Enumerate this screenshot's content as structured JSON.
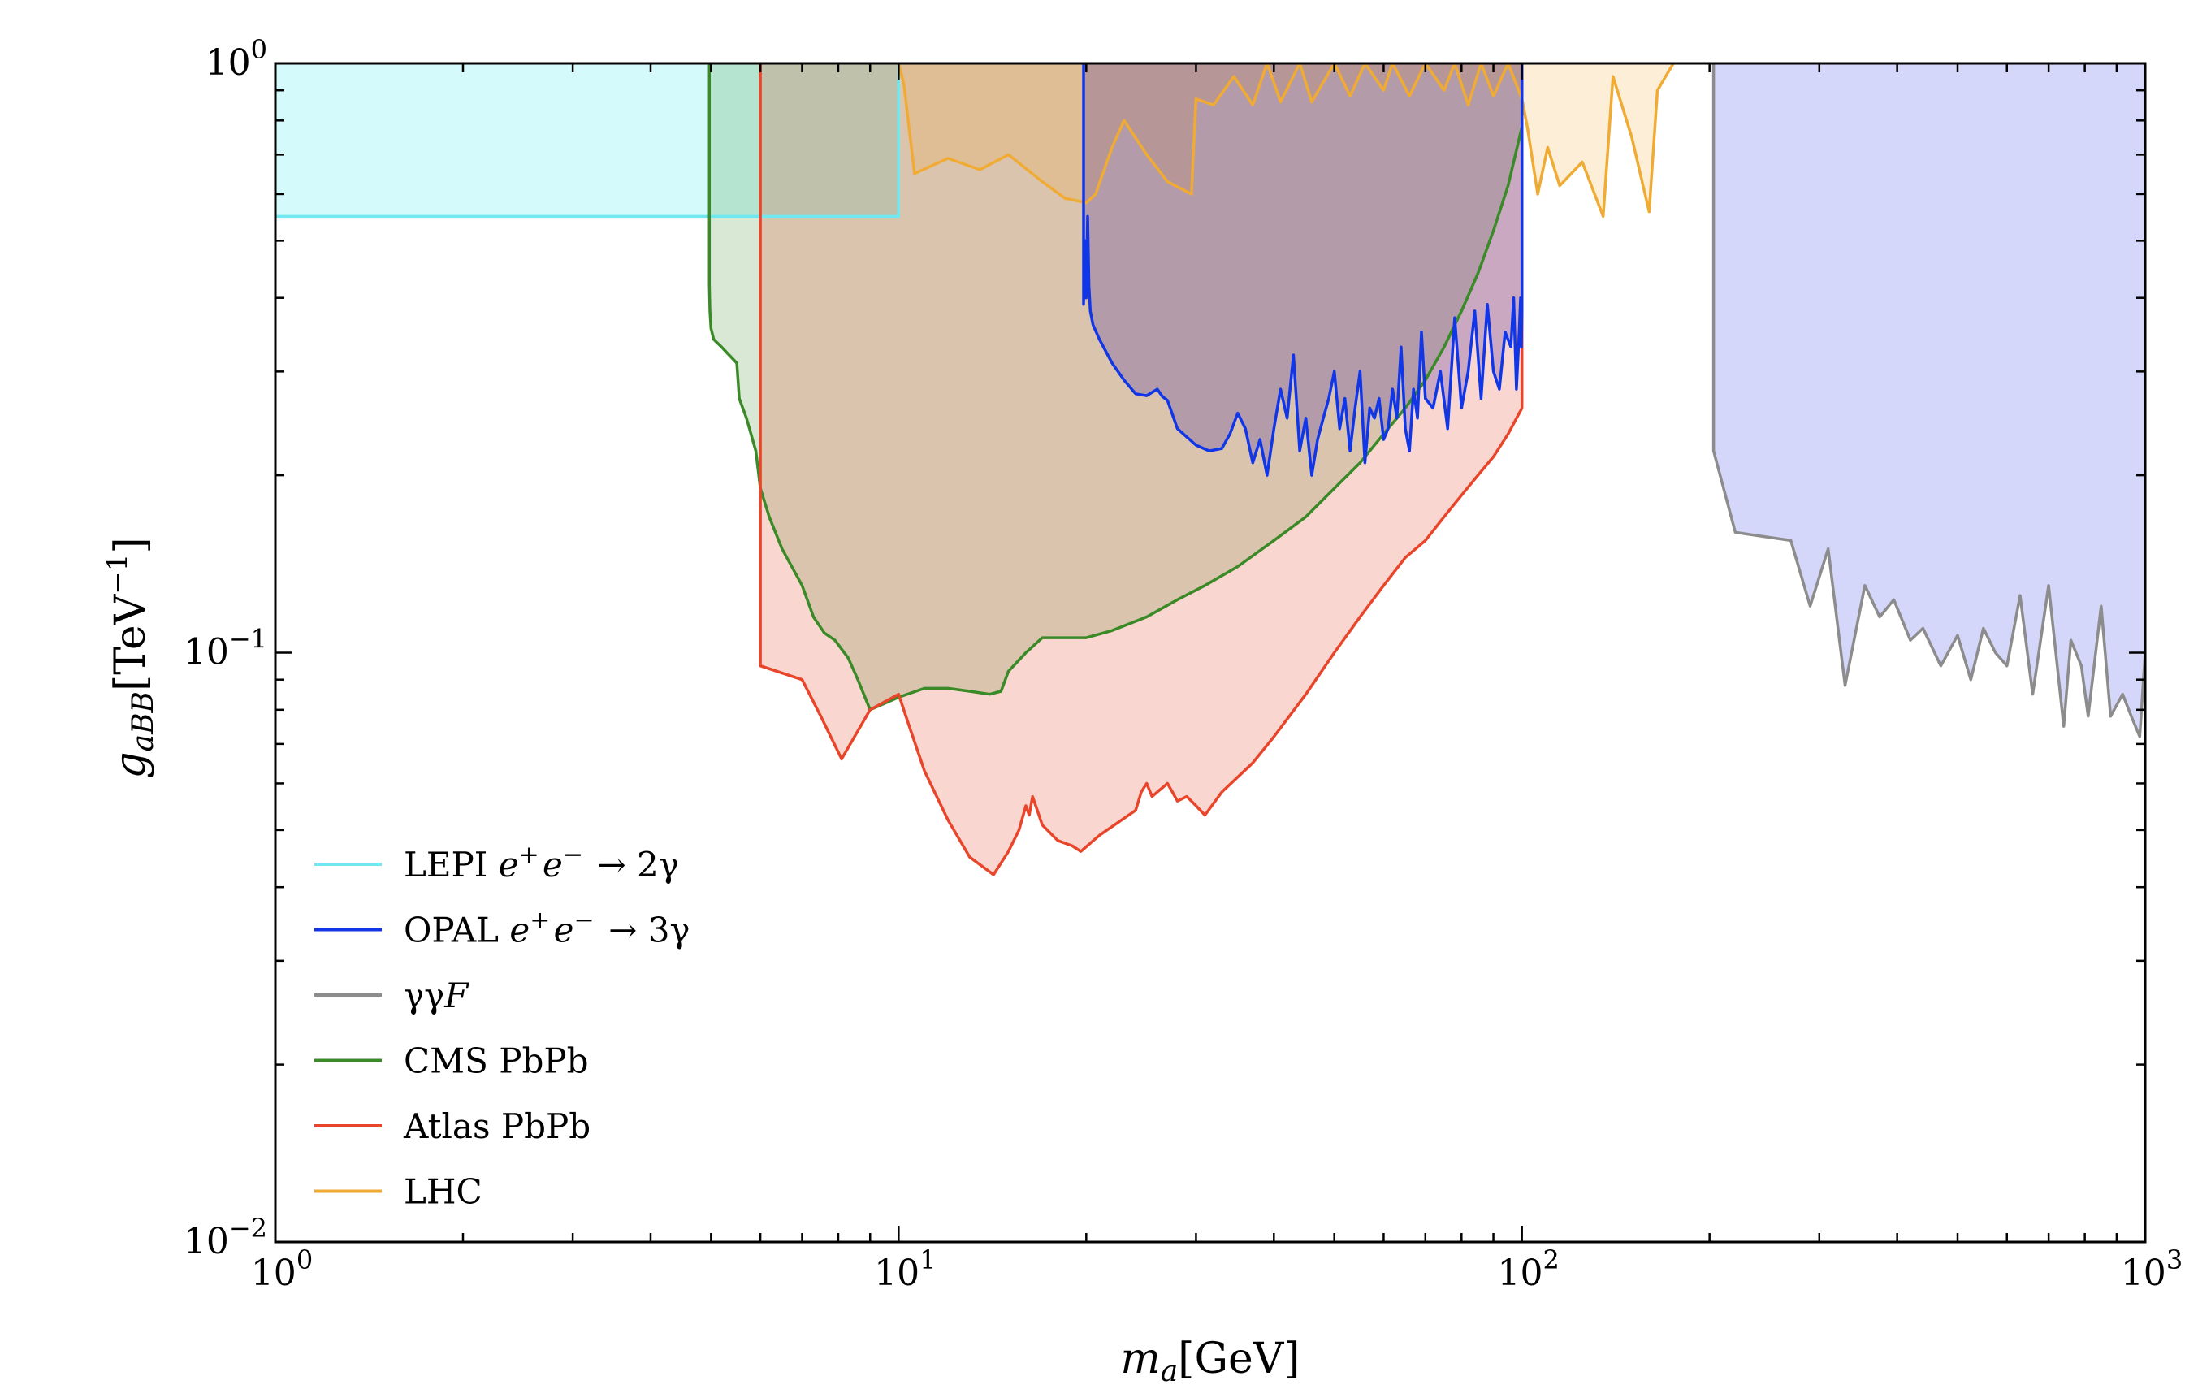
{
  "chart_data": {
    "type": "area",
    "xscale": "log",
    "yscale": "log",
    "xlim": [
      1,
      1000
    ],
    "ylim": [
      0.01,
      1
    ],
    "x_ticks": [
      {
        "value": 1,
        "base": "10",
        "exp": "0"
      },
      {
        "value": 10,
        "base": "10",
        "exp": "1"
      },
      {
        "value": 100,
        "base": "10",
        "exp": "2"
      },
      {
        "value": 1000,
        "base": "10",
        "exp": "3"
      }
    ],
    "y_ticks": [
      {
        "value": 0.01,
        "base": "10",
        "exp": "−2"
      },
      {
        "value": 0.1,
        "base": "10",
        "exp": "−1"
      },
      {
        "value": 1,
        "base": "10",
        "exp": "0"
      }
    ],
    "xlabel": {
      "symbol": "m",
      "sub": "a",
      "unit": "[GeV]"
    },
    "ylabel": {
      "symbol": "g",
      "sub": "aBB",
      "unit_pre": "[TeV",
      "unit_sup": "−1",
      "unit_post": "]"
    },
    "grid": false,
    "legend_position": "lower-left",
    "series": [
      {
        "name": "LEPI e+e− → 2γ",
        "label": {
          "pre": "LEPI ",
          "math": [
            [
              "e",
              "+"
            ],
            [
              "e",
              "−"
            ]
          ],
          "post": " → 2γ"
        },
        "color": "#6fe9ef",
        "fill": "#d4fafb",
        "fill_opacity": 1,
        "x": [
          1,
          10,
          10
        ],
        "y": [
          0.55,
          0.55,
          1
        ]
      },
      {
        "name": "CMS PbPb",
        "label": {
          "pre": "CMS PbPb"
        },
        "color": "#3a8a28",
        "fill": "#3a8a28",
        "fill_opacity": 0.2,
        "x": [
          4.97,
          4.97,
          4.98,
          5.0,
          5.05,
          5.2,
          5.5,
          5.55,
          5.7,
          5.9,
          6.0,
          6.2,
          6.5,
          7.0,
          7.3,
          7.6,
          7.9,
          8.3,
          8.6,
          9.0,
          10,
          11,
          12,
          13,
          14,
          14.6,
          15,
          16,
          17,
          20,
          22,
          25,
          28,
          31,
          35,
          40,
          45,
          50,
          55,
          60,
          65,
          70,
          75,
          80,
          85,
          90,
          95,
          100
        ],
        "y": [
          1,
          0.42,
          0.38,
          0.355,
          0.34,
          0.33,
          0.31,
          0.27,
          0.25,
          0.22,
          0.19,
          0.17,
          0.15,
          0.13,
          0.115,
          0.108,
          0.105,
          0.098,
          0.09,
          0.08,
          0.084,
          0.087,
          0.087,
          0.086,
          0.085,
          0.086,
          0.093,
          0.1,
          0.106,
          0.106,
          0.109,
          0.115,
          0.123,
          0.13,
          0.14,
          0.155,
          0.17,
          0.19,
          0.21,
          0.235,
          0.26,
          0.29,
          0.33,
          0.38,
          0.44,
          0.52,
          0.62,
          0.78
        ]
      },
      {
        "name": "Atlas PbPb",
        "label": {
          "pre": "Atlas PbPb"
        },
        "color": "#e8452b",
        "fill": "#e8452b",
        "fill_opacity": 0.22,
        "x": [
          6.0,
          6.0,
          7.0,
          7.5,
          8.1,
          9.0,
          10,
          10.4,
          11,
          12,
          13,
          14.2,
          15,
          15.6,
          16,
          16.2,
          16.4,
          17,
          18,
          19,
          19.6,
          21,
          24,
          24.5,
          25,
          25.5,
          27,
          27.5,
          28,
          29,
          30,
          31,
          33,
          37,
          40,
          45,
          50,
          55,
          60,
          65,
          70,
          75,
          80,
          85,
          90,
          95,
          100,
          100
        ],
        "y": [
          1,
          0.095,
          0.09,
          0.078,
          0.066,
          0.08,
          0.085,
          0.075,
          0.063,
          0.052,
          0.045,
          0.042,
          0.046,
          0.05,
          0.055,
          0.053,
          0.057,
          0.051,
          0.048,
          0.047,
          0.046,
          0.049,
          0.054,
          0.058,
          0.06,
          0.057,
          0.06,
          0.058,
          0.056,
          0.057,
          0.055,
          0.053,
          0.058,
          0.065,
          0.072,
          0.085,
          0.1,
          0.115,
          0.13,
          0.145,
          0.155,
          0.17,
          0.185,
          0.2,
          0.215,
          0.235,
          0.26,
          1
        ]
      },
      {
        "name": "LHC",
        "label": {
          "pre": "LHC"
        },
        "color": "#f0ab35",
        "fill": "#f0ab35",
        "fill_opacity": 0.2,
        "x": [
          10,
          10.2,
          10.6,
          12,
          13.5,
          15,
          17,
          18.5,
          20,
          20.7,
          22,
          23,
          25,
          27,
          29.5,
          30,
          32,
          34.5,
          37,
          39,
          41,
          44,
          46,
          50,
          53,
          56,
          60,
          62,
          66,
          70,
          75,
          78,
          82,
          86,
          90,
          95,
          100,
          102,
          106,
          110,
          115,
          125,
          135,
          140,
          150,
          160,
          165,
          170,
          175
        ],
        "y": [
          1,
          0.92,
          0.65,
          0.69,
          0.66,
          0.7,
          0.63,
          0.59,
          0.58,
          0.6,
          0.72,
          0.8,
          0.7,
          0.63,
          0.6,
          0.87,
          0.85,
          0.95,
          0.85,
          1,
          0.86,
          1,
          0.86,
          1,
          0.88,
          1,
          0.9,
          1,
          0.88,
          1,
          0.9,
          1,
          0.85,
          1,
          0.88,
          1,
          0.87,
          0.78,
          0.6,
          0.72,
          0.62,
          0.68,
          0.55,
          0.95,
          0.75,
          0.56,
          0.9,
          0.95,
          1
        ]
      },
      {
        "name": "OPAL e+e− → 3γ",
        "label": {
          "pre": "OPAL ",
          "math": [
            [
              "e",
              "+"
            ],
            [
              "e",
              "−"
            ]
          ],
          "post": " → 3γ"
        },
        "color": "#1036e8",
        "fill": "#4b2d9b",
        "fill_opacity": 0.27,
        "x": [
          19.8,
          19.8,
          19.9,
          20.0,
          20.1,
          20.2,
          20.3,
          20.5,
          21,
          22,
          23,
          24,
          25,
          26,
          26.5,
          27,
          28,
          30,
          31.5,
          33,
          34,
          35,
          36,
          37,
          38,
          39,
          40,
          41,
          42,
          43,
          44,
          45,
          46,
          47,
          48,
          49,
          50,
          51,
          52,
          53,
          54,
          55,
          56,
          57,
          58,
          59,
          60,
          61,
          62,
          63,
          64,
          65,
          66,
          67,
          68,
          69,
          70,
          72,
          74,
          76,
          78,
          80,
          82,
          84,
          86,
          88,
          90,
          92,
          94,
          96,
          97,
          98,
          99,
          99.5,
          99.8,
          100,
          100
        ],
        "y": [
          1,
          0.39,
          0.5,
          0.4,
          0.55,
          0.42,
          0.38,
          0.36,
          0.34,
          0.31,
          0.29,
          0.275,
          0.273,
          0.28,
          0.272,
          0.268,
          0.24,
          0.225,
          0.22,
          0.222,
          0.235,
          0.255,
          0.24,
          0.21,
          0.23,
          0.2,
          0.24,
          0.28,
          0.25,
          0.32,
          0.22,
          0.25,
          0.2,
          0.23,
          0.25,
          0.27,
          0.3,
          0.24,
          0.27,
          0.22,
          0.26,
          0.3,
          0.21,
          0.26,
          0.25,
          0.27,
          0.23,
          0.24,
          0.28,
          0.25,
          0.33,
          0.24,
          0.22,
          0.28,
          0.25,
          0.35,
          0.27,
          0.26,
          0.3,
          0.24,
          0.37,
          0.26,
          0.3,
          0.38,
          0.27,
          0.39,
          0.3,
          0.28,
          0.35,
          0.33,
          0.4,
          0.28,
          0.35,
          0.4,
          0.33,
          0.38,
          1
        ]
      },
      {
        "name": "γγF",
        "label": {
          "pre": "γγ",
          "italic_tail": "F"
        },
        "color": "#8c8c8c",
        "fill": "#2a35e8",
        "fill_opacity": 0.2,
        "x": [
          203,
          203,
          220,
          270,
          290,
          310,
          330,
          355,
          375,
          395,
          420,
          440,
          470,
          500,
          525,
          550,
          575,
          600,
          630,
          660,
          700,
          740,
          760,
          790,
          810,
          850,
          880,
          920,
          950,
          980,
          1000
        ],
        "y": [
          1,
          0.22,
          0.16,
          0.155,
          0.12,
          0.15,
          0.088,
          0.13,
          0.115,
          0.123,
          0.105,
          0.11,
          0.095,
          0.107,
          0.09,
          0.11,
          0.1,
          0.095,
          0.125,
          0.085,
          0.13,
          0.075,
          0.105,
          0.095,
          0.078,
          0.12,
          0.078,
          0.085,
          0.078,
          0.072,
          0.1
        ]
      }
    ],
    "legend_order": [
      "LEPI e+e− → 2γ",
      "OPAL e+e− → 3γ",
      "γγF",
      "CMS PbPb",
      "Atlas PbPb",
      "LHC"
    ]
  }
}
